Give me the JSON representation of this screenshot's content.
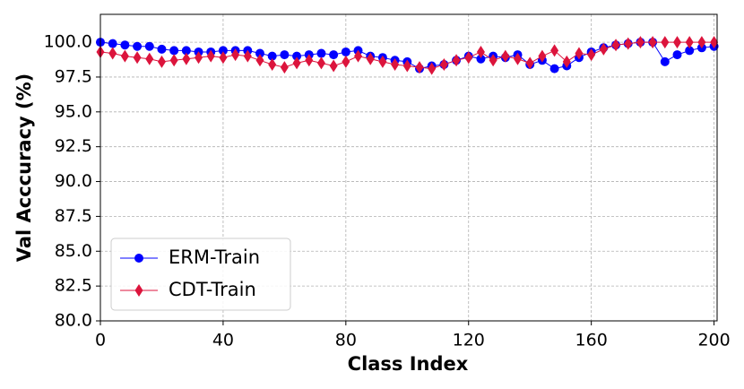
{
  "chart_data": {
    "type": "line",
    "xlabel": "Class Index",
    "ylabel": "Val Acccuracy (%)",
    "x": [
      0,
      4,
      8,
      12,
      16,
      20,
      24,
      28,
      32,
      36,
      40,
      44,
      48,
      52,
      56,
      60,
      64,
      68,
      72,
      76,
      80,
      84,
      88,
      92,
      96,
      100,
      104,
      108,
      112,
      116,
      120,
      124,
      128,
      132,
      136,
      140,
      144,
      148,
      152,
      156,
      160,
      164,
      168,
      172,
      176,
      180,
      184,
      188,
      192,
      196,
      200
    ],
    "series": [
      {
        "name": "ERM-Train",
        "color": "#0000ff",
        "marker": "circle",
        "values": [
          100,
          99.9,
          99.8,
          99.7,
          99.7,
          99.5,
          99.4,
          99.4,
          99.3,
          99.3,
          99.4,
          99.4,
          99.4,
          99.2,
          99.0,
          99.1,
          99.0,
          99.1,
          99.2,
          99.1,
          99.3,
          99.4,
          99.0,
          98.9,
          98.7,
          98.6,
          98.1,
          98.3,
          98.4,
          98.7,
          99.0,
          98.8,
          99.0,
          98.9,
          99.1,
          98.4,
          98.7,
          98.1,
          98.3,
          98.9,
          99.3,
          99.6,
          99.8,
          99.9,
          100,
          100,
          98.6,
          99.1,
          99.4,
          99.6,
          99.7
        ]
      },
      {
        "name": "CDT-Train",
        "color": "#dc143c",
        "marker": "diamond",
        "values": [
          99.3,
          99.2,
          99.0,
          98.9,
          98.8,
          98.6,
          98.7,
          98.8,
          98.9,
          99.0,
          98.9,
          99.1,
          99.0,
          98.7,
          98.4,
          98.2,
          98.5,
          98.7,
          98.5,
          98.3,
          98.6,
          99.0,
          98.8,
          98.6,
          98.4,
          98.3,
          98.2,
          98.1,
          98.4,
          98.7,
          98.9,
          99.3,
          98.7,
          99.0,
          98.8,
          98.5,
          99.0,
          99.4,
          98.6,
          99.2,
          99.1,
          99.5,
          99.8,
          99.9,
          100,
          100,
          100,
          100,
          100,
          100,
          100
        ]
      }
    ],
    "xlim": [
      0,
      201
    ],
    "xticks": [
      0,
      40,
      80,
      120,
      160,
      200
    ],
    "ylim": [
      80,
      102
    ],
    "yticks": [
      {
        "value": 80,
        "label": "80.0"
      },
      {
        "value": 82.5,
        "label": "82.5"
      },
      {
        "value": 85,
        "label": "85.0"
      },
      {
        "value": 87.5,
        "label": "87.5"
      },
      {
        "value": 90,
        "label": "90.0"
      },
      {
        "value": 92.5,
        "label": "92.5"
      },
      {
        "value": 95,
        "label": "95.0"
      },
      {
        "value": 97.5,
        "label": "97.5"
      },
      {
        "value": 100,
        "label": "100.0"
      }
    ],
    "grid": true,
    "legend": "lower left"
  }
}
